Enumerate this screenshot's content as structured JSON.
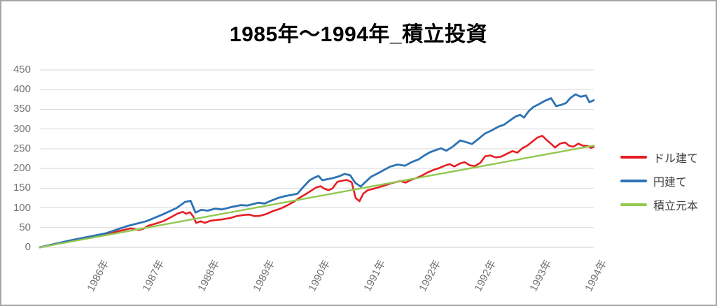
{
  "title": "1985年～1994年_積立投資",
  "legend": {
    "items": [
      {
        "label": "ドル建て",
        "color": "#e61e23"
      },
      {
        "label": "円建て",
        "color": "#2d73b4"
      },
      {
        "label": "積立元本",
        "color": "#92c850"
      }
    ]
  },
  "chart_data": {
    "type": "line",
    "title": "1985年～1994年_積立投資",
    "xlabel": "",
    "ylabel": "",
    "ylim": [
      0,
      450
    ],
    "yticks": [
      0,
      50,
      100,
      150,
      200,
      250,
      300,
      350,
      400,
      450
    ],
    "xticks": [
      "1986年",
      "1987年",
      "1988年",
      "1989年",
      "1990年",
      "1991年",
      "1992年",
      "1992年",
      "1993年",
      "1994年"
    ],
    "grid": "horizontal",
    "gridline_color": "#d9d9d9",
    "legend_position": "right",
    "x_range_note": "x is fraction of plot width, period 1985–1994",
    "series": [
      {
        "name": "ドル建て",
        "color": "#e61e23",
        "points": [
          [
            0,
            0
          ],
          [
            0.057,
            16
          ],
          [
            0.092,
            25
          ],
          [
            0.12,
            33
          ],
          [
            0.145,
            42
          ],
          [
            0.164,
            48
          ],
          [
            0.178,
            44
          ],
          [
            0.187,
            47
          ],
          [
            0.196,
            55
          ],
          [
            0.209,
            60
          ],
          [
            0.224,
            67
          ],
          [
            0.236,
            76
          ],
          [
            0.249,
            86
          ],
          [
            0.258,
            90
          ],
          [
            0.264,
            85
          ],
          [
            0.271,
            89
          ],
          [
            0.277,
            78
          ],
          [
            0.282,
            62
          ],
          [
            0.29,
            66
          ],
          [
            0.298,
            62
          ],
          [
            0.307,
            67
          ],
          [
            0.317,
            69
          ],
          [
            0.33,
            71
          ],
          [
            0.343,
            74
          ],
          [
            0.355,
            79
          ],
          [
            0.368,
            82
          ],
          [
            0.378,
            83
          ],
          [
            0.388,
            79
          ],
          [
            0.398,
            80
          ],
          [
            0.408,
            84
          ],
          [
            0.421,
            92
          ],
          [
            0.434,
            98
          ],
          [
            0.446,
            106
          ],
          [
            0.459,
            116
          ],
          [
            0.469,
            126
          ],
          [
            0.479,
            134
          ],
          [
            0.489,
            143
          ],
          [
            0.499,
            152
          ],
          [
            0.507,
            155
          ],
          [
            0.513,
            149
          ],
          [
            0.521,
            145
          ],
          [
            0.528,
            149
          ],
          [
            0.537,
            166
          ],
          [
            0.546,
            169
          ],
          [
            0.554,
            171
          ],
          [
            0.563,
            165
          ],
          [
            0.57,
            125
          ],
          [
            0.577,
            117
          ],
          [
            0.584,
            136
          ],
          [
            0.592,
            145
          ],
          [
            0.601,
            148
          ],
          [
            0.611,
            152
          ],
          [
            0.621,
            156
          ],
          [
            0.631,
            161
          ],
          [
            0.641,
            165
          ],
          [
            0.651,
            168
          ],
          [
            0.66,
            164
          ],
          [
            0.67,
            171
          ],
          [
            0.68,
            176
          ],
          [
            0.69,
            182
          ],
          [
            0.7,
            190
          ],
          [
            0.71,
            196
          ],
          [
            0.721,
            201
          ],
          [
            0.731,
            207
          ],
          [
            0.74,
            211
          ],
          [
            0.748,
            205
          ],
          [
            0.759,
            213
          ],
          [
            0.767,
            216
          ],
          [
            0.776,
            208
          ],
          [
            0.785,
            206
          ],
          [
            0.795,
            214
          ],
          [
            0.804,
            231
          ],
          [
            0.813,
            233
          ],
          [
            0.823,
            228
          ],
          [
            0.833,
            230
          ],
          [
            0.843,
            237
          ],
          [
            0.853,
            244
          ],
          [
            0.862,
            240
          ],
          [
            0.871,
            251
          ],
          [
            0.88,
            258
          ],
          [
            0.889,
            268
          ],
          [
            0.898,
            278
          ],
          [
            0.907,
            283
          ],
          [
            0.915,
            272
          ],
          [
            0.924,
            261
          ],
          [
            0.93,
            253
          ],
          [
            0.939,
            263
          ],
          [
            0.948,
            266
          ],
          [
            0.955,
            258
          ],
          [
            0.963,
            255
          ],
          [
            0.972,
            263
          ],
          [
            0.98,
            258
          ],
          [
            0.989,
            257
          ],
          [
            0.995,
            252
          ],
          [
            1,
            255
          ]
        ]
      },
      {
        "name": "円建て",
        "color": "#2d73b4",
        "points": [
          [
            0,
            0
          ],
          [
            0.057,
            18
          ],
          [
            0.092,
            28
          ],
          [
            0.12,
            36
          ],
          [
            0.158,
            54
          ],
          [
            0.192,
            66
          ],
          [
            0.221,
            83
          ],
          [
            0.247,
            100
          ],
          [
            0.262,
            115
          ],
          [
            0.272,
            118
          ],
          [
            0.281,
            88
          ],
          [
            0.291,
            95
          ],
          [
            0.303,
            93
          ],
          [
            0.316,
            98
          ],
          [
            0.329,
            96
          ],
          [
            0.348,
            103
          ],
          [
            0.363,
            107
          ],
          [
            0.375,
            106
          ],
          [
            0.386,
            110
          ],
          [
            0.394,
            113
          ],
          [
            0.406,
            111
          ],
          [
            0.417,
            118
          ],
          [
            0.43,
            125
          ],
          [
            0.443,
            130
          ],
          [
            0.455,
            133
          ],
          [
            0.465,
            136
          ],
          [
            0.475,
            152
          ],
          [
            0.487,
            170
          ],
          [
            0.496,
            177
          ],
          [
            0.503,
            181
          ],
          [
            0.51,
            170
          ],
          [
            0.52,
            173
          ],
          [
            0.53,
            176
          ],
          [
            0.54,
            180
          ],
          [
            0.55,
            186
          ],
          [
            0.56,
            183
          ],
          [
            0.569,
            164
          ],
          [
            0.579,
            154
          ],
          [
            0.588,
            166
          ],
          [
            0.598,
            179
          ],
          [
            0.608,
            186
          ],
          [
            0.621,
            196
          ],
          [
            0.633,
            205
          ],
          [
            0.646,
            210
          ],
          [
            0.659,
            207
          ],
          [
            0.671,
            216
          ],
          [
            0.684,
            223
          ],
          [
            0.694,
            233
          ],
          [
            0.704,
            241
          ],
          [
            0.714,
            246
          ],
          [
            0.724,
            251
          ],
          [
            0.734,
            245
          ],
          [
            0.746,
            256
          ],
          [
            0.759,
            271
          ],
          [
            0.769,
            267
          ],
          [
            0.78,
            262
          ],
          [
            0.79,
            273
          ],
          [
            0.803,
            288
          ],
          [
            0.815,
            296
          ],
          [
            0.828,
            306
          ],
          [
            0.838,
            311
          ],
          [
            0.848,
            321
          ],
          [
            0.858,
            331
          ],
          [
            0.867,
            336
          ],
          [
            0.874,
            329
          ],
          [
            0.883,
            346
          ],
          [
            0.891,
            356
          ],
          [
            0.901,
            363
          ],
          [
            0.911,
            371
          ],
          [
            0.923,
            378
          ],
          [
            0.932,
            358
          ],
          [
            0.941,
            361
          ],
          [
            0.95,
            366
          ],
          [
            0.958,
            379
          ],
          [
            0.967,
            388
          ],
          [
            0.976,
            382
          ],
          [
            0.986,
            385
          ],
          [
            0.992,
            368
          ],
          [
            1,
            373
          ]
        ]
      },
      {
        "name": "積立元本",
        "color": "#92c850",
        "points": [
          [
            0,
            0
          ],
          [
            1,
            258
          ]
        ]
      }
    ]
  }
}
